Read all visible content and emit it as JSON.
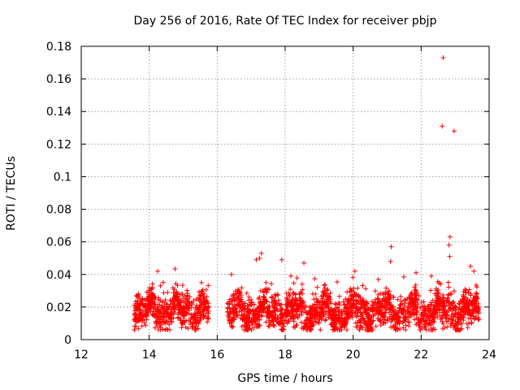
{
  "chart_data": {
    "type": "scatter",
    "title": "Day 256 of 2016, Rate Of TEC Index for receiver pbjp",
    "xlabel": "GPS time / hours",
    "ylabel": "ROTI / TECUs",
    "xlim": [
      12,
      24
    ],
    "ylim": [
      0,
      0.18
    ],
    "xticks": [
      12,
      14,
      16,
      18,
      20,
      22,
      24
    ],
    "yticks": [
      0,
      0.02,
      0.04,
      0.06,
      0.08,
      0.1,
      0.12,
      0.14,
      0.16,
      0.18
    ],
    "ytick_labels": [
      "0",
      "0.02",
      "0.04",
      "0.06",
      "0.08",
      "0.1",
      "0.12",
      "0.14",
      "0.16",
      "0.18"
    ],
    "xtick_labels": [
      "12",
      "14",
      "16",
      "18",
      "20",
      "22",
      "24"
    ],
    "grid": true,
    "marker": "+",
    "color": "#ff0000",
    "segments": [
      {
        "x_start": 13.55,
        "x_end": 15.75,
        "base": 0.018,
        "spread": 0.011
      },
      {
        "x_start": 16.3,
        "x_end": 23.7,
        "base": 0.017,
        "spread": 0.011
      }
    ],
    "highlight_points": [
      {
        "x": 22.65,
        "y": 0.173
      },
      {
        "x": 22.62,
        "y": 0.131
      },
      {
        "x": 22.97,
        "y": 0.128
      },
      {
        "x": 22.85,
        "y": 0.063
      },
      {
        "x": 22.82,
        "y": 0.058
      },
      {
        "x": 22.84,
        "y": 0.051
      },
      {
        "x": 21.12,
        "y": 0.057
      },
      {
        "x": 21.1,
        "y": 0.048
      },
      {
        "x": 17.3,
        "y": 0.053
      },
      {
        "x": 17.25,
        "y": 0.05
      },
      {
        "x": 17.15,
        "y": 0.049
      },
      {
        "x": 17.9,
        "y": 0.049
      },
      {
        "x": 18.55,
        "y": 0.047
      },
      {
        "x": 14.25,
        "y": 0.042
      },
      {
        "x": 16.42,
        "y": 0.04
      },
      {
        "x": 20.05,
        "y": 0.042
      },
      {
        "x": 21.85,
        "y": 0.041
      },
      {
        "x": 23.45,
        "y": 0.045
      },
      {
        "x": 23.55,
        "y": 0.042
      },
      {
        "x": 22.3,
        "y": 0.039
      }
    ]
  }
}
